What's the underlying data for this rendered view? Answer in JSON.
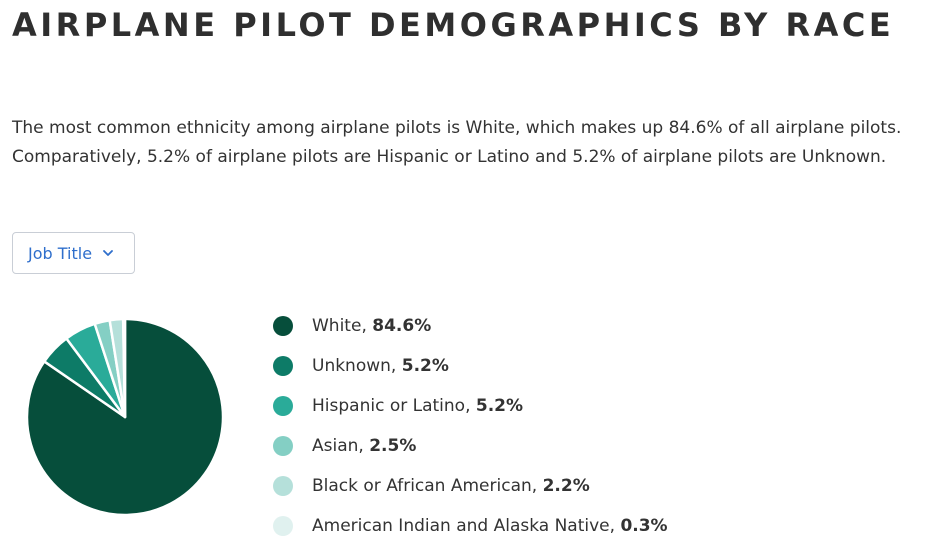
{
  "title": "AIRPLANE PILOT DEMOGRAPHICS BY RACE",
  "summary": "The most common ethnicity among airplane pilots is White, which makes up 84.6% of all airplane pilots. Comparatively, 5.2% of airplane pilots are Hispanic or Latino and 5.2% of airplane pilots are Unknown.",
  "dropdown": {
    "label": "Job Title",
    "icon": "chevron-down-icon"
  },
  "colors": {
    "dropdown_text": "#2f6fcc",
    "slice_border": "#ffffff"
  },
  "chart_data": {
    "type": "pie",
    "categories": [
      "White",
      "Unknown",
      "Hispanic or Latino",
      "Asian",
      "Black or African American",
      "American Indian and Alaska Native"
    ],
    "values": [
      84.6,
      5.2,
      5.2,
      2.5,
      2.2,
      0.3
    ],
    "labels": [
      "84.6%",
      "5.2%",
      "5.2%",
      "2.5%",
      "2.2%",
      "0.3%"
    ],
    "colors": [
      "#064e3b",
      "#0d7b67",
      "#2aab99",
      "#84cfc4",
      "#b5e0da",
      "#e0f1ef"
    ],
    "legend_position": "right"
  }
}
